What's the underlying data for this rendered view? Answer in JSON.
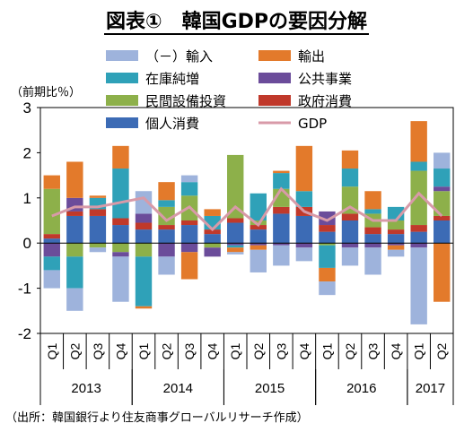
{
  "title": "図表①　韓国GDPの要因分解",
  "ylabel": "（前期比％）",
  "source": "（出所：韓国銀行より住友商事グローバルリサーチ作成）",
  "chart_data": {
    "type": "bar",
    "stacked": true,
    "categories": [
      "Q1",
      "Q2",
      "Q3",
      "Q4",
      "Q1",
      "Q2",
      "Q3",
      "Q4",
      "Q1",
      "Q2",
      "Q3",
      "Q4",
      "Q1",
      "Q2",
      "Q3",
      "Q4",
      "Q1",
      "Q2"
    ],
    "years": [
      {
        "label": "2013",
        "start": 0,
        "count": 4
      },
      {
        "label": "2014",
        "start": 4,
        "count": 4
      },
      {
        "label": "2015",
        "start": 8,
        "count": 4
      },
      {
        "label": "2016",
        "start": 12,
        "count": 4
      },
      {
        "label": "2017",
        "start": 16,
        "count": 2
      }
    ],
    "ylim": [
      -2,
      3
    ],
    "yticks": [
      -2,
      -1,
      0,
      1,
      2,
      3
    ],
    "legend_position": "top",
    "series": [
      {
        "name": "個人消費",
        "color": "#3c6bb5",
        "values": [
          0.1,
          0.6,
          0.6,
          0.4,
          0.3,
          0.3,
          0.4,
          0.2,
          0.45,
          0.3,
          0.65,
          0.6,
          0.25,
          0.5,
          0.2,
          0.2,
          0.25,
          0.5
        ]
      },
      {
        "name": "政府消費",
        "color": "#c0392b",
        "values": [
          0.1,
          0.1,
          0.15,
          0.15,
          0.15,
          0.1,
          0.1,
          0.1,
          0.1,
          0.1,
          0.15,
          0.2,
          0.15,
          0.15,
          0.15,
          0.1,
          0.15,
          0.1
        ]
      },
      {
        "name": "民間設備投資",
        "color": "#8db04a",
        "values": [
          1.0,
          -0.3,
          -0.1,
          -0.2,
          -0.3,
          0.4,
          0.55,
          -0.1,
          1.4,
          0.1,
          0.4,
          0.0,
          -0.05,
          0.6,
          0.3,
          0.2,
          1.2,
          0.55
        ]
      },
      {
        "name": "公共事業",
        "color": "#6b4c9a",
        "values": [
          -0.3,
          0.3,
          0.0,
          -0.1,
          0.2,
          -0.3,
          -0.2,
          -0.2,
          -0.05,
          -0.05,
          -0.05,
          -0.1,
          0.3,
          -0.1,
          -0.1,
          -0.05,
          -0.1,
          0.1
        ]
      },
      {
        "name": "在庫純増",
        "color": "#2fa1b8",
        "values": [
          -0.3,
          -0.7,
          0.25,
          1.1,
          -1.1,
          0.15,
          0.3,
          0.3,
          -0.05,
          0.6,
          0.35,
          0.35,
          -0.5,
          0.4,
          0.1,
          0.3,
          0.2,
          0.4
        ]
      },
      {
        "name": "輸出",
        "color": "#e37a2b",
        "values": [
          0.3,
          0.8,
          0.05,
          0.5,
          -0.05,
          0.4,
          -0.6,
          0.15,
          -0.1,
          -0.1,
          0.05,
          1.0,
          -0.3,
          0.4,
          0.4,
          -0.1,
          0.9,
          -1.3
        ]
      },
      {
        "name": "（－）輸入",
        "color": "#9eb3dc",
        "values": [
          -0.4,
          -0.5,
          -0.1,
          -1.0,
          0.5,
          -0.4,
          0.15,
          0.0,
          -0.05,
          -0.5,
          -0.45,
          -0.3,
          -0.3,
          -0.4,
          -0.6,
          -0.15,
          -1.7,
          0.35
        ]
      }
    ],
    "gdp": {
      "name": "GDP",
      "color": "#d89aa8",
      "values": [
        0.6,
        0.8,
        0.8,
        0.9,
        1.0,
        0.5,
        0.8,
        0.3,
        0.8,
        0.4,
        1.2,
        0.7,
        0.5,
        0.8,
        0.5,
        0.5,
        1.1,
        0.6
      ]
    }
  }
}
